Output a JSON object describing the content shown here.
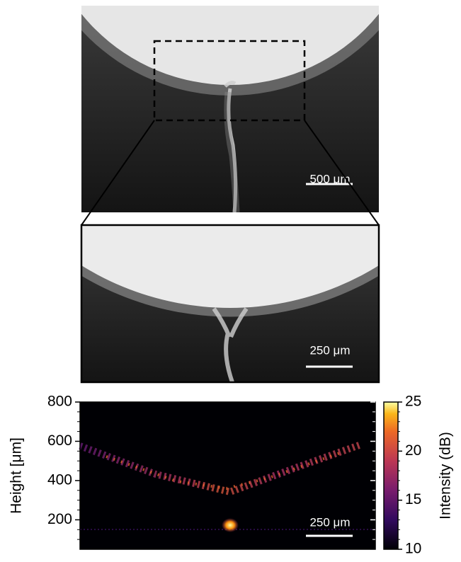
{
  "panels": {
    "overview": {
      "scale_bar": "500 μm"
    },
    "zoom": {
      "scale_bar": "250 μm"
    }
  },
  "chart_data": {
    "type": "heatmap",
    "ylabel": "Height [μm]",
    "ylim": [
      50,
      800
    ],
    "yticks": [
      200,
      400,
      600,
      800
    ],
    "yminorticks": [
      100,
      150,
      250,
      300,
      350,
      450,
      500,
      550,
      650,
      700,
      750
    ],
    "colorbar": {
      "label": "Intensity (dB)",
      "lim": [
        10,
        25
      ],
      "ticks": [
        10,
        15,
        20,
        25
      ],
      "minorticks": [
        11,
        12,
        13,
        14,
        16,
        17,
        18,
        19,
        21,
        22,
        23,
        24
      ]
    },
    "scale_bar": "250 μm"
  }
}
